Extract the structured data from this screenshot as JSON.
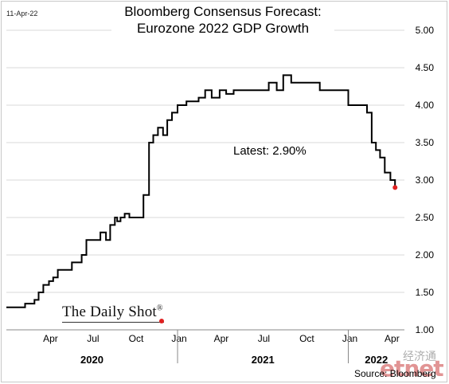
{
  "header": {
    "date_stamp": "11-Apr-22",
    "title_line1": "Bloomberg Consensus Forecast:",
    "title_line2": "Eurozone 2022 GDP Growth"
  },
  "annotation": {
    "latest": "Latest:  2.90%"
  },
  "brand": {
    "name": "The Daily Shot",
    "mark": "®"
  },
  "footer": {
    "source": "Source: Bloomberg"
  },
  "watermark": {
    "text": "etnet",
    "cn": "经济通"
  },
  "colors": {
    "line": "#000000",
    "last_point": "#e02020",
    "grid": "#d9d9d9"
  },
  "chart_data": {
    "type": "line",
    "ylim": [
      1.0,
      5.0
    ],
    "yticks": [
      1.0,
      1.5,
      2.0,
      2.5,
      3.0,
      3.5,
      4.0,
      4.5,
      5.0
    ],
    "y_axis_position": "right",
    "grid": "horizontal",
    "x_month_ticks": [
      "Apr",
      "Jul",
      "Oct",
      "Jan",
      "Apr",
      "Jul",
      "Oct",
      "Jan",
      "Apr"
    ],
    "x_years": [
      "2020",
      "2021",
      "2022"
    ],
    "x": [
      "2020-01-01",
      "2020-02-01",
      "2020-02-10",
      "2020-02-20",
      "2020-03-01",
      "2020-03-10",
      "2020-03-20",
      "2020-04-01",
      "2020-04-10",
      "2020-04-20",
      "2020-05-01",
      "2020-05-10",
      "2020-05-20",
      "2020-06-01",
      "2020-06-10",
      "2020-06-20",
      "2020-07-01",
      "2020-07-10",
      "2020-07-20",
      "2020-08-01",
      "2020-08-10",
      "2020-08-20",
      "2020-08-25",
      "2020-09-01",
      "2020-09-10",
      "2020-09-20",
      "2020-10-01",
      "2020-10-10",
      "2020-10-20",
      "2020-11-01",
      "2020-11-10",
      "2020-11-20",
      "2020-12-01",
      "2020-12-10",
      "2020-12-20",
      "2021-01-01",
      "2021-01-10",
      "2021-01-20",
      "2021-02-01",
      "2021-02-15",
      "2021-03-01",
      "2021-03-15",
      "2021-04-01",
      "2021-04-15",
      "2021-05-01",
      "2021-05-15",
      "2021-06-01",
      "2021-06-15",
      "2021-07-01",
      "2021-07-15",
      "2021-08-01",
      "2021-08-15",
      "2021-09-01",
      "2021-09-15",
      "2021-10-01",
      "2021-10-15",
      "2021-11-01",
      "2021-11-15",
      "2021-12-01",
      "2021-12-15",
      "2022-01-01",
      "2022-01-15",
      "2022-02-01",
      "2022-02-10",
      "2022-02-20",
      "2022-03-01",
      "2022-03-10",
      "2022-03-20",
      "2022-04-01",
      "2022-04-11"
    ],
    "values": [
      1.3,
      1.3,
      1.35,
      1.35,
      1.4,
      1.5,
      1.6,
      1.65,
      1.7,
      1.8,
      1.8,
      1.8,
      1.9,
      1.9,
      2.0,
      2.2,
      2.2,
      2.2,
      2.3,
      2.2,
      2.4,
      2.5,
      2.45,
      2.5,
      2.55,
      2.5,
      2.5,
      2.5,
      2.8,
      3.5,
      3.6,
      3.7,
      3.6,
      3.8,
      3.9,
      4.0,
      4.0,
      4.05,
      4.05,
      4.1,
      4.2,
      4.1,
      4.2,
      4.15,
      4.2,
      4.2,
      4.2,
      4.2,
      4.2,
      4.3,
      4.2,
      4.4,
      4.3,
      4.3,
      4.3,
      4.3,
      4.2,
      4.2,
      4.2,
      4.2,
      4.0,
      4.0,
      4.0,
      3.9,
      3.5,
      3.4,
      3.3,
      3.1,
      3.0,
      2.9
    ]
  }
}
